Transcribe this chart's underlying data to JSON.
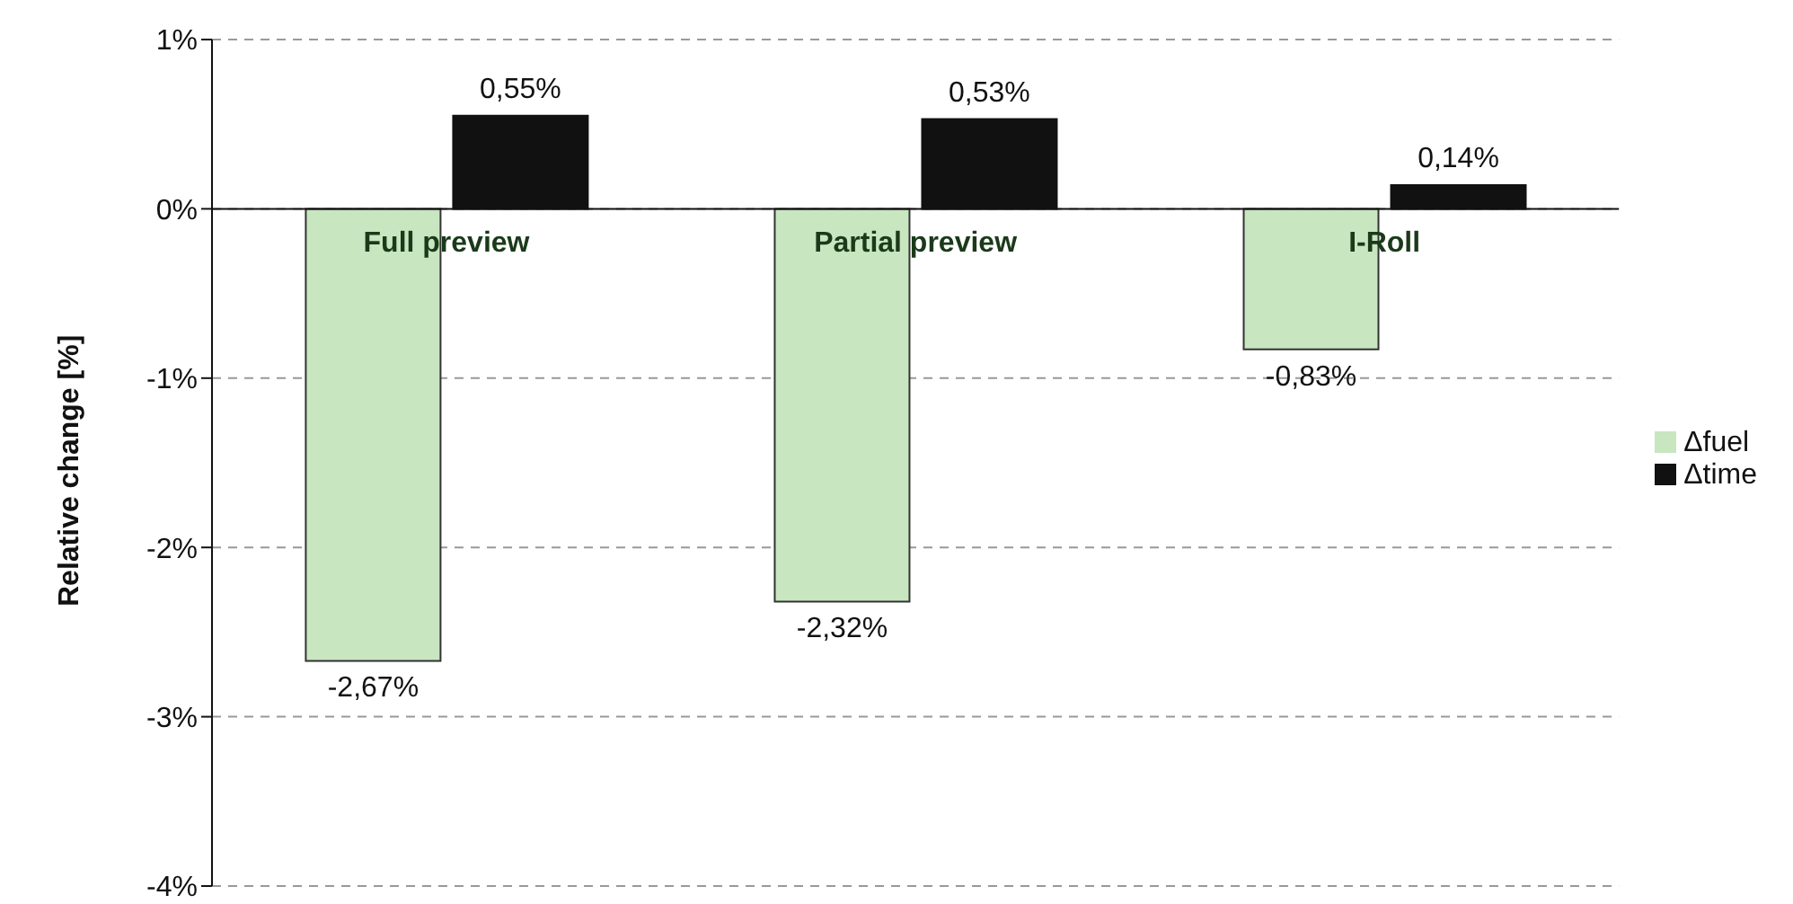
{
  "chart_data": {
    "type": "bar",
    "ylabel": "Relative change [%]",
    "categories": [
      "Full preview",
      "Partial preview",
      "I-Roll"
    ],
    "series": [
      {
        "name": "Δfuel",
        "color": "#c8e6c0",
        "values": [
          -2.67,
          -2.32,
          -0.83
        ],
        "value_labels": [
          "-2,67%",
          "-2,32%",
          "-0,83%"
        ]
      },
      {
        "name": "Δtime",
        "color": "#111111",
        "values": [
          0.55,
          0.53,
          0.14
        ],
        "value_labels": [
          "0,55%",
          "0,53%",
          "0,14%"
        ]
      }
    ],
    "ylim": [
      -4,
      1
    ],
    "yticks": [
      {
        "value": 1,
        "label": "1%"
      },
      {
        "value": 0,
        "label": "0%"
      },
      {
        "value": -1,
        "label": "-1%"
      },
      {
        "value": -2,
        "label": "-2%"
      },
      {
        "value": -3,
        "label": "-3%"
      },
      {
        "value": -4,
        "label": "-4%"
      }
    ],
    "grid": "y",
    "legend": "right"
  }
}
